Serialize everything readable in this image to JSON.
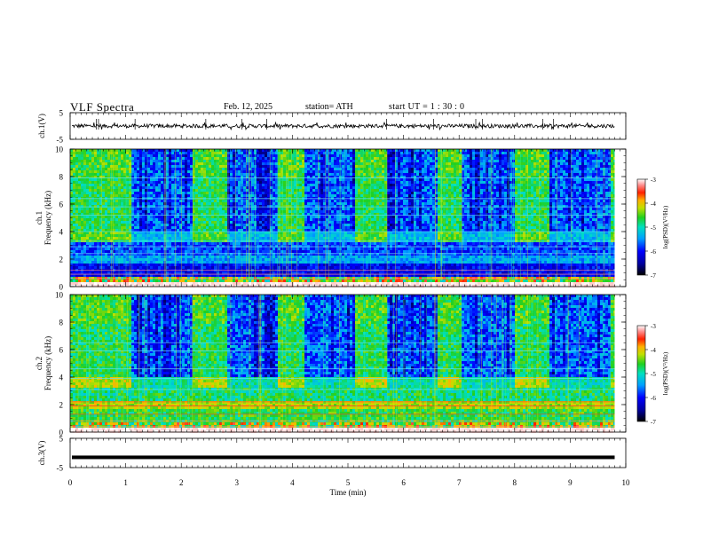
{
  "header": {
    "title": "VLF  Spectra",
    "date": "Feb. 12, 2025",
    "station": "station= ATH",
    "start_ut": "start  UT  =   1 : 30 : 0"
  },
  "chart_data": [
    {
      "type": "line",
      "panel": "ch1-waveform",
      "ylabel": "ch.1(V)",
      "ylim": [
        -5,
        5
      ],
      "yticks": [
        "5",
        "-5"
      ],
      "xlim": [
        0,
        10
      ],
      "trace_range_approx": [
        -0.8,
        0.8
      ],
      "color": "#000000"
    },
    {
      "type": "heatmap",
      "panel": "ch1-spectrogram",
      "ylabel": "ch.1",
      "ylabel2": "Frequency  (kHz)",
      "ylim": [
        0,
        10
      ],
      "yticks": [
        "0",
        "2",
        "4",
        "6",
        "8",
        "10"
      ],
      "xlim": [
        0,
        9.8
      ],
      "quiet_intervals_min": [
        [
          1.1,
          2.2
        ],
        [
          2.8,
          3.7
        ],
        [
          4.2,
          5.1
        ],
        [
          5.7,
          6.6
        ],
        [
          7.0,
          8.0
        ],
        [
          8.6,
          9.7
        ]
      ],
      "active_intervals_min": [
        [
          0,
          1.1
        ],
        [
          2.2,
          2.8
        ],
        [
          3.7,
          4.2
        ],
        [
          5.1,
          5.7
        ],
        [
          6.6,
          7.0
        ],
        [
          8.0,
          8.6
        ]
      ],
      "colorbar": {
        "label": "log(PSD)(V²/Hz)",
        "range": [
          -7,
          -3
        ],
        "ticks": [
          "-3",
          "-4",
          "-5",
          "-6",
          "-7"
        ]
      }
    },
    {
      "type": "heatmap",
      "panel": "ch2-spectrogram",
      "ylabel": "ch.2",
      "ylabel2": "Frequency  (kHz)",
      "ylim": [
        0,
        10
      ],
      "yticks": [
        "0",
        "2",
        "4",
        "6",
        "8",
        "10"
      ],
      "xlim": [
        0,
        9.8
      ],
      "quiet_intervals_min": [
        [
          1.1,
          2.2
        ],
        [
          2.8,
          3.7
        ],
        [
          4.2,
          5.1
        ],
        [
          5.7,
          6.6
        ],
        [
          7.0,
          8.0
        ],
        [
          8.6,
          9.7
        ]
      ],
      "active_intervals_min": [
        [
          0,
          1.1
        ],
        [
          2.2,
          2.8
        ],
        [
          3.7,
          4.2
        ],
        [
          5.1,
          5.7
        ],
        [
          6.6,
          7.0
        ],
        [
          8.0,
          8.6
        ]
      ],
      "colorbar": {
        "label": "log(PSD)(V²/Hz)",
        "range": [
          -7,
          -3
        ],
        "ticks": [
          "-3",
          "-4",
          "-5",
          "-6",
          "-7"
        ]
      }
    },
    {
      "type": "line",
      "panel": "ch3-waveform",
      "ylabel": "ch.3(V)",
      "ylim": [
        -5,
        5
      ],
      "yticks": [
        "5",
        "-5"
      ],
      "xlim": [
        0,
        10
      ],
      "constant_value_approx": -1.5,
      "xlabel": "Time  (min)",
      "xticks": [
        "0",
        "1",
        "2",
        "3",
        "4",
        "5",
        "6",
        "7",
        "8",
        "9",
        "10"
      ]
    }
  ],
  "colors": {
    "low": "#000000",
    "deep_blue": "#0000c8",
    "blue": "#0050ff",
    "cyan": "#00c8e0",
    "green": "#28d040",
    "yellow": "#e8e800",
    "red": "#e81010",
    "pink": "#ffc0c0",
    "high": "#ffffff"
  }
}
